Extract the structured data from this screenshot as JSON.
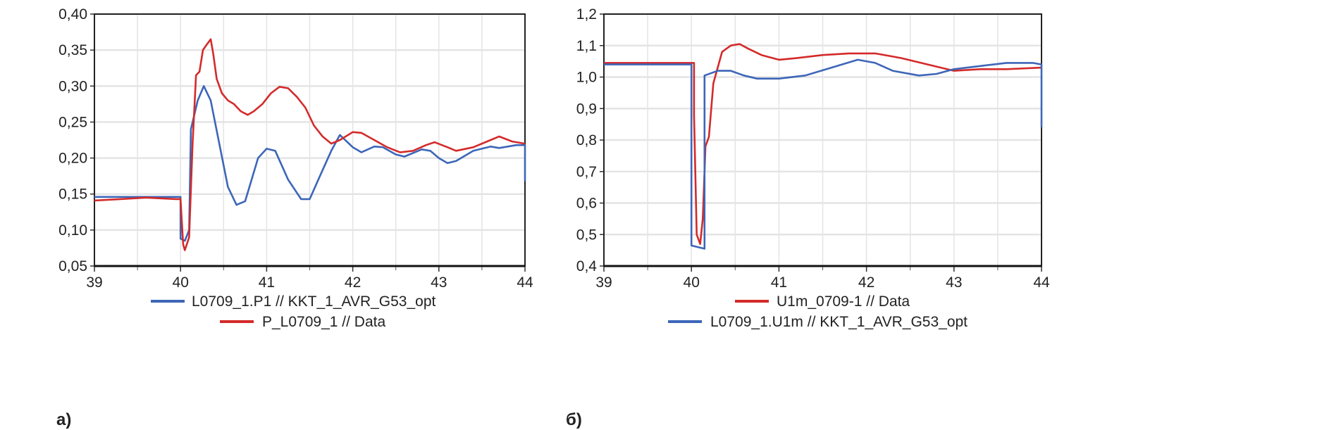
{
  "chart_data": [
    {
      "type": "line",
      "panel_label": "а)",
      "xlim": [
        39,
        44
      ],
      "ylim": [
        0.05,
        0.4
      ],
      "xticks": [
        "39",
        "40",
        "41",
        "42",
        "43",
        "44"
      ],
      "yticks": [
        "0,05",
        "0,10",
        "0,15",
        "0,20",
        "0,25",
        "0,30",
        "0,35",
        "0,40"
      ],
      "grid": true,
      "legend_position": "bottom-center",
      "series": [
        {
          "name": "L0709_1.P1 // KKT_1_AVR_G53_opt",
          "color": "#3d66b8",
          "points": [
            [
              39,
              0.146
            ],
            [
              40.0,
              0.146
            ],
            [
              40.0,
              0.088
            ],
            [
              40.05,
              0.085
            ],
            [
              40.1,
              0.1
            ],
            [
              40.12,
              0.24
            ],
            [
              40.2,
              0.28
            ],
            [
              40.27,
              0.3
            ],
            [
              40.35,
              0.28
            ],
            [
              40.45,
              0.22
            ],
            [
              40.55,
              0.16
            ],
            [
              40.65,
              0.135
            ],
            [
              40.75,
              0.14
            ],
            [
              40.9,
              0.2
            ],
            [
              41.0,
              0.213
            ],
            [
              41.1,
              0.21
            ],
            [
              41.25,
              0.17
            ],
            [
              41.4,
              0.143
            ],
            [
              41.5,
              0.143
            ],
            [
              41.6,
              0.17
            ],
            [
              41.75,
              0.21
            ],
            [
              41.85,
              0.232
            ],
            [
              42.0,
              0.215
            ],
            [
              42.1,
              0.208
            ],
            [
              42.25,
              0.216
            ],
            [
              42.35,
              0.215
            ],
            [
              42.5,
              0.205
            ],
            [
              42.6,
              0.202
            ],
            [
              42.8,
              0.212
            ],
            [
              42.9,
              0.21
            ],
            [
              43.0,
              0.2
            ],
            [
              43.1,
              0.193
            ],
            [
              43.2,
              0.196
            ],
            [
              43.4,
              0.21
            ],
            [
              43.6,
              0.216
            ],
            [
              43.7,
              0.214
            ],
            [
              43.9,
              0.218
            ],
            [
              44.0,
              0.218
            ],
            [
              44.0,
              0.168
            ]
          ]
        },
        {
          "name": "P_L0709_1 // Data",
          "color": "#d42a2a",
          "points": [
            [
              39,
              0.141
            ],
            [
              39.3,
              0.143
            ],
            [
              39.6,
              0.145
            ],
            [
              39.95,
              0.143
            ],
            [
              40.0,
              0.143
            ],
            [
              40.03,
              0.08
            ],
            [
              40.05,
              0.072
            ],
            [
              40.1,
              0.09
            ],
            [
              40.14,
              0.22
            ],
            [
              40.18,
              0.315
            ],
            [
              40.22,
              0.32
            ],
            [
              40.26,
              0.35
            ],
            [
              40.3,
              0.357
            ],
            [
              40.35,
              0.365
            ],
            [
              40.38,
              0.345
            ],
            [
              40.42,
              0.31
            ],
            [
              40.48,
              0.29
            ],
            [
              40.55,
              0.28
            ],
            [
              40.62,
              0.275
            ],
            [
              40.7,
              0.265
            ],
            [
              40.78,
              0.26
            ],
            [
              40.85,
              0.265
            ],
            [
              40.95,
              0.275
            ],
            [
              41.05,
              0.29
            ],
            [
              41.15,
              0.299
            ],
            [
              41.25,
              0.297
            ],
            [
              41.35,
              0.285
            ],
            [
              41.45,
              0.27
            ],
            [
              41.55,
              0.245
            ],
            [
              41.65,
              0.23
            ],
            [
              41.75,
              0.22
            ],
            [
              41.85,
              0.225
            ],
            [
              42.0,
              0.236
            ],
            [
              42.1,
              0.235
            ],
            [
              42.25,
              0.225
            ],
            [
              42.4,
              0.215
            ],
            [
              42.55,
              0.208
            ],
            [
              42.7,
              0.21
            ],
            [
              42.85,
              0.218
            ],
            [
              42.95,
              0.222
            ],
            [
              43.1,
              0.215
            ],
            [
              43.2,
              0.21
            ],
            [
              43.4,
              0.215
            ],
            [
              43.6,
              0.225
            ],
            [
              43.7,
              0.23
            ],
            [
              43.85,
              0.223
            ],
            [
              44.0,
              0.22
            ]
          ]
        }
      ]
    },
    {
      "type": "line",
      "panel_label": "б)",
      "xlim": [
        39,
        44
      ],
      "ylim": [
        0.4,
        1.2
      ],
      "xticks": [
        "39",
        "40",
        "41",
        "42",
        "43",
        "44"
      ],
      "yticks": [
        "0,4",
        "0,5",
        "0,6",
        "0,7",
        "0,8",
        "0,9",
        "1,0",
        "1,1",
        "1,2"
      ],
      "grid": true,
      "legend_position": "bottom-center",
      "series": [
        {
          "name": "U1m_0709-1 // Data",
          "color": "#d42a2a",
          "points": [
            [
              39,
              1.045
            ],
            [
              40.03,
              1.045
            ],
            [
              40.03,
              0.88
            ],
            [
              40.06,
              0.5
            ],
            [
              40.1,
              0.47
            ],
            [
              40.13,
              0.55
            ],
            [
              40.16,
              0.78
            ],
            [
              40.2,
              0.81
            ],
            [
              40.25,
              0.98
            ],
            [
              40.3,
              1.03
            ],
            [
              40.35,
              1.08
            ],
            [
              40.45,
              1.1
            ],
            [
              40.55,
              1.105
            ],
            [
              40.65,
              1.09
            ],
            [
              40.8,
              1.07
            ],
            [
              41.0,
              1.055
            ],
            [
              41.2,
              1.06
            ],
            [
              41.5,
              1.07
            ],
            [
              41.8,
              1.075
            ],
            [
              42.1,
              1.075
            ],
            [
              42.4,
              1.06
            ],
            [
              42.7,
              1.04
            ],
            [
              43.0,
              1.02
            ],
            [
              43.3,
              1.025
            ],
            [
              43.6,
              1.025
            ],
            [
              44.0,
              1.03
            ]
          ]
        },
        {
          "name": "L0709_1.U1m // KKT_1_AVR_G53_opt",
          "color": "#3d66b8",
          "points": [
            [
              39,
              1.04
            ],
            [
              40.0,
              1.04
            ],
            [
              40.0,
              0.465
            ],
            [
              40.15,
              0.455
            ],
            [
              40.15,
              1.005
            ],
            [
              40.3,
              1.02
            ],
            [
              40.45,
              1.02
            ],
            [
              40.6,
              1.005
            ],
            [
              40.75,
              0.995
            ],
            [
              41.0,
              0.995
            ],
            [
              41.3,
              1.005
            ],
            [
              41.6,
              1.03
            ],
            [
              41.9,
              1.055
            ],
            [
              42.1,
              1.045
            ],
            [
              42.3,
              1.02
            ],
            [
              42.6,
              1.005
            ],
            [
              42.8,
              1.01
            ],
            [
              43.0,
              1.025
            ],
            [
              43.3,
              1.035
            ],
            [
              43.6,
              1.045
            ],
            [
              43.9,
              1.045
            ],
            [
              44.0,
              1.04
            ],
            [
              44.0,
              0.84
            ]
          ]
        }
      ]
    }
  ]
}
